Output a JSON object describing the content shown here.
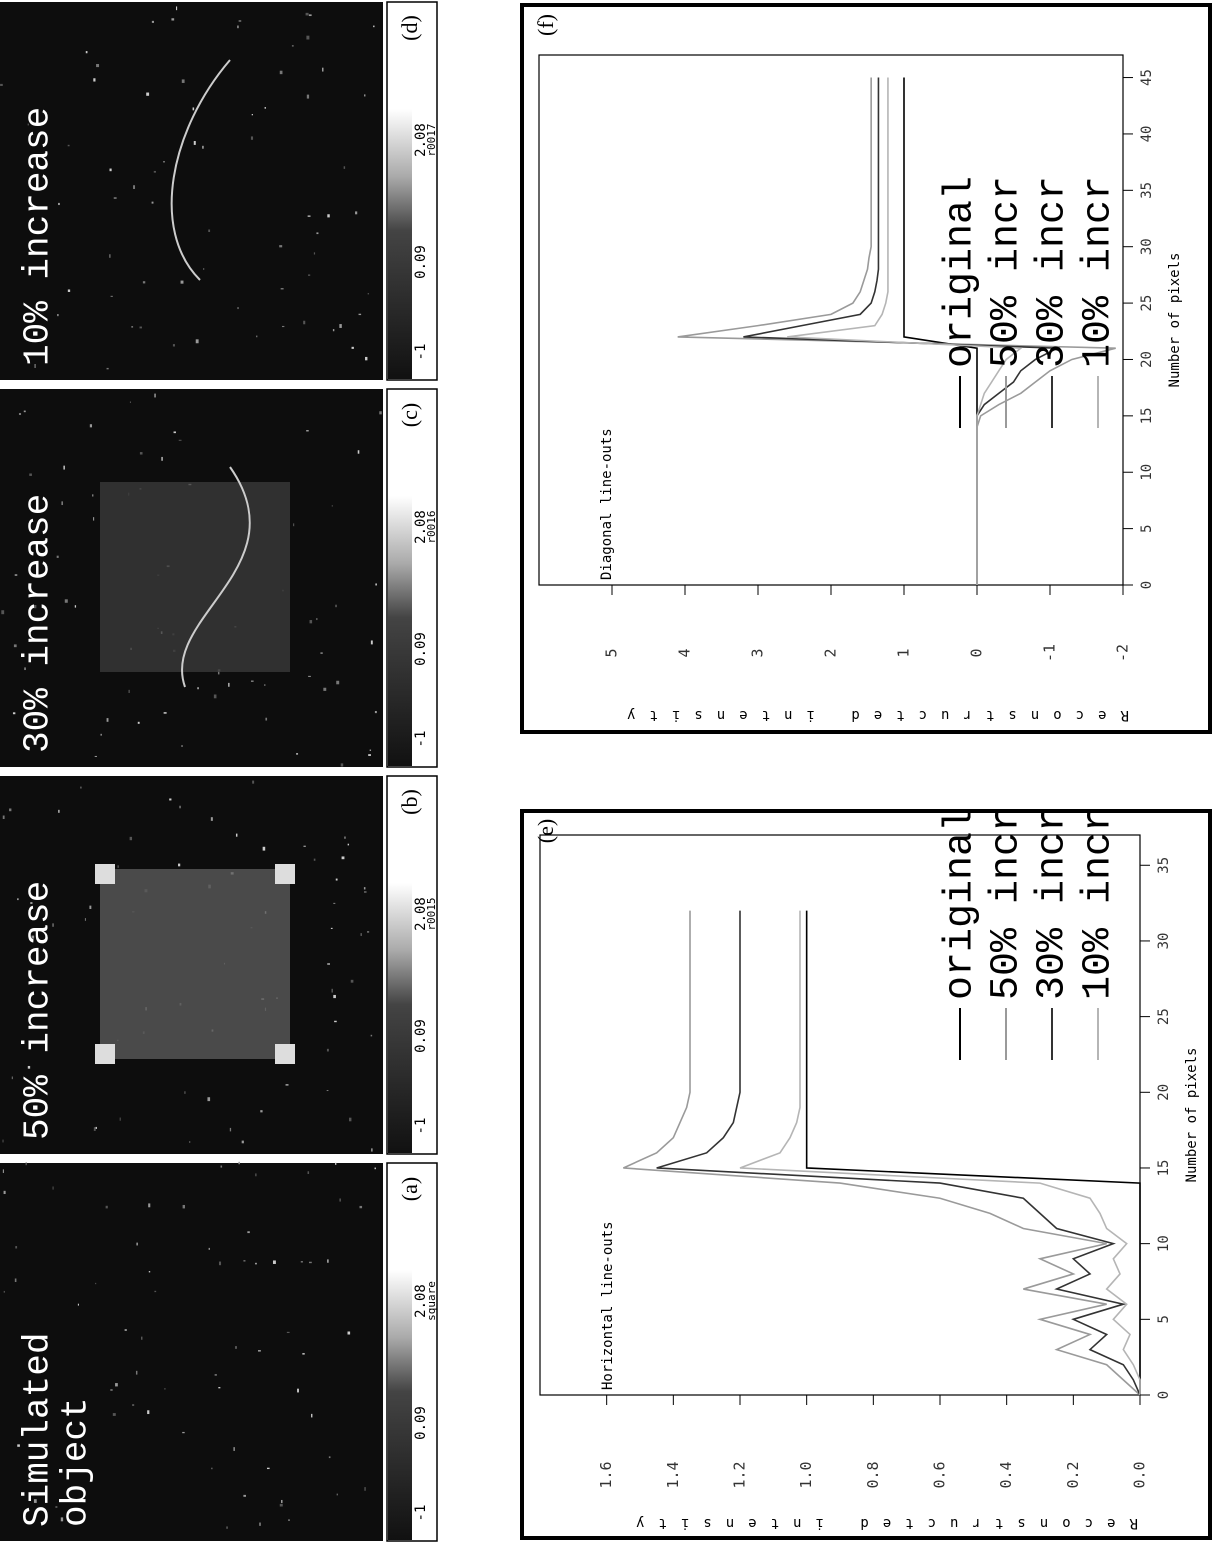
{
  "panels": [
    {
      "title_lines": [
        "Simulated",
        "object"
      ],
      "colorbar_ticks": [
        "-1",
        "0.09",
        "2.08"
      ],
      "colorbar_label": "square",
      "letter": "(a)"
    },
    {
      "title_lines": [
        "50% increase"
      ],
      "colorbar_ticks": [
        "-1",
        "0.09",
        "2.08"
      ],
      "colorbar_label": "r0015",
      "letter": "(b)"
    },
    {
      "title_lines": [
        "30% increase"
      ],
      "colorbar_ticks": [
        "-1",
        "0.09",
        "2.08"
      ],
      "colorbar_label": "r0016",
      "letter": "(c)"
    },
    {
      "title_lines": [
        "10% increase"
      ],
      "colorbar_ticks": [
        "-1",
        "0.09",
        "2.08"
      ],
      "colorbar_label": "r0017",
      "letter": "(d)"
    }
  ],
  "chart_data": [
    {
      "type": "line",
      "panel_label": "(e)",
      "title": "Horizontal line-outs",
      "x_label": "Number of pixels",
      "y_label": "Reconstructed intensity",
      "x": [
        0,
        1,
        2,
        3,
        4,
        5,
        6,
        7,
        8,
        9,
        10,
        11,
        12,
        13,
        14,
        15,
        16,
        17,
        18,
        19,
        20,
        21,
        22,
        23,
        24,
        25,
        26,
        27,
        28,
        29,
        30,
        31,
        32
      ],
      "series": [
        {
          "name": "original",
          "color": "#000000",
          "values": [
            0,
            0,
            0,
            0,
            0,
            0,
            0,
            0,
            0,
            0,
            0,
            0,
            0,
            0,
            0,
            1.0,
            1.0,
            1.0,
            1.0,
            1.0,
            1.0,
            1.0,
            1.0,
            1.0,
            1.0,
            1.0,
            1.0,
            1.0,
            1.0,
            1.0,
            1.0,
            1.0,
            1.0
          ]
        },
        {
          "name": "50% incr",
          "color": "#9a9a9a",
          "values": [
            0,
            0.05,
            0.1,
            0.25,
            0.15,
            0.3,
            0.1,
            0.35,
            0.2,
            0.3,
            0.1,
            0.35,
            0.45,
            0.6,
            0.9,
            1.55,
            1.45,
            1.4,
            1.38,
            1.36,
            1.35,
            1.35,
            1.35,
            1.35,
            1.35,
            1.35,
            1.35,
            1.35,
            1.35,
            1.35,
            1.35,
            1.35,
            1.35
          ]
        },
        {
          "name": "30% incr",
          "color": "#333333",
          "values": [
            0,
            0.02,
            0.05,
            0.15,
            0.1,
            0.2,
            0.05,
            0.25,
            0.15,
            0.2,
            0.08,
            0.25,
            0.3,
            0.35,
            0.6,
            1.45,
            1.3,
            1.25,
            1.22,
            1.21,
            1.2,
            1.2,
            1.2,
            1.2,
            1.2,
            1.2,
            1.2,
            1.2,
            1.2,
            1.2,
            1.2,
            1.2,
            1.2
          ]
        },
        {
          "name": "10% incr",
          "color": "#b5b5b5",
          "values": [
            0,
            0,
            0.02,
            0.05,
            0.03,
            0.08,
            0.04,
            0.1,
            0.06,
            0.08,
            0.04,
            0.1,
            0.12,
            0.15,
            0.3,
            1.2,
            1.08,
            1.05,
            1.03,
            1.02,
            1.02,
            1.02,
            1.02,
            1.02,
            1.02,
            1.02,
            1.02,
            1.02,
            1.02,
            1.02,
            1.02,
            1.02,
            1.02
          ]
        }
      ],
      "xlim": [
        0,
        37
      ],
      "ylim": [
        0,
        1.8
      ],
      "xticks": [
        0,
        5,
        10,
        15,
        20,
        25,
        30,
        35
      ],
      "yticks": [
        {
          "value": 0,
          "label": "0.0"
        },
        0.2,
        0.4,
        0.6,
        0.8,
        {
          "value": 1,
          "label": "1.0"
        },
        1.2,
        1.4,
        1.6
      ]
    },
    {
      "type": "line",
      "panel_label": "(f)",
      "title": "Diagonal line-outs",
      "x_label": "Number of pixels",
      "y_label": "Reconstructed intensity",
      "x": [
        0,
        1,
        2,
        3,
        4,
        5,
        6,
        7,
        8,
        9,
        10,
        11,
        12,
        13,
        14,
        15,
        16,
        17,
        18,
        19,
        20,
        21,
        22,
        23,
        24,
        25,
        26,
        27,
        28,
        29,
        30,
        31,
        32,
        33,
        34,
        35,
        36,
        37,
        38,
        39,
        40,
        41,
        42,
        43,
        44,
        45
      ],
      "series": [
        {
          "name": "original",
          "color": "#000000",
          "values": [
            0,
            0,
            0,
            0,
            0,
            0,
            0,
            0,
            0,
            0,
            0,
            0,
            0,
            0,
            0,
            0,
            0,
            0,
            0,
            0,
            0,
            0,
            1,
            1,
            1,
            1,
            1,
            1,
            1,
            1,
            1,
            1,
            1,
            1,
            1,
            1,
            1,
            1,
            1,
            1,
            1,
            1,
            1,
            1,
            1,
            1
          ]
        },
        {
          "name": "50% incr",
          "color": "#9a9a9a",
          "values": [
            0,
            0,
            0,
            0,
            0,
            0,
            0,
            0,
            0,
            0,
            0,
            0,
            0,
            0,
            0,
            -0.05,
            -0.3,
            -0.6,
            -0.8,
            -1.0,
            -1.3,
            -1.9,
            4.1,
            3.0,
            2.0,
            1.7,
            1.6,
            1.55,
            1.5,
            1.48,
            1.45,
            1.45,
            1.45,
            1.45,
            1.45,
            1.45,
            1.45,
            1.45,
            1.45,
            1.45,
            1.45,
            1.45,
            1.45,
            1.45,
            1.45,
            1.45
          ]
        },
        {
          "name": "30% incr",
          "color": "#333333",
          "values": [
            0,
            0,
            0,
            0,
            0,
            0,
            0,
            0,
            0,
            0,
            0,
            0,
            0,
            0,
            0,
            0,
            -0.1,
            -0.3,
            -0.5,
            -0.6,
            -0.8,
            -1.1,
            3.2,
            2.4,
            1.6,
            1.45,
            1.4,
            1.37,
            1.35,
            1.35,
            1.35,
            1.35,
            1.35,
            1.35,
            1.35,
            1.35,
            1.35,
            1.35,
            1.35,
            1.35,
            1.35,
            1.35,
            1.35,
            1.35,
            1.35,
            1.35
          ]
        },
        {
          "name": "10% incr",
          "color": "#b5b5b5",
          "values": [
            0,
            0,
            0,
            0,
            0,
            0,
            0,
            0,
            0,
            0,
            0,
            0,
            0,
            0,
            0,
            0,
            -0.05,
            -0.1,
            -0.2,
            -0.3,
            -0.4,
            -0.6,
            2.6,
            1.4,
            1.3,
            1.25,
            1.22,
            1.22,
            1.22,
            1.22,
            1.22,
            1.22,
            1.22,
            1.22,
            1.22,
            1.22,
            1.22,
            1.22,
            1.22,
            1.22,
            1.22,
            1.22,
            1.22,
            1.22,
            1.22,
            1.22
          ]
        }
      ],
      "xlim": [
        0,
        47
      ],
      "ylim": [
        -2,
        6
      ],
      "xticks": [
        0,
        5,
        10,
        15,
        20,
        25,
        30,
        35,
        40,
        45
      ],
      "yticks": [
        -2,
        -1,
        0,
        1,
        2,
        3,
        4,
        5
      ]
    }
  ]
}
